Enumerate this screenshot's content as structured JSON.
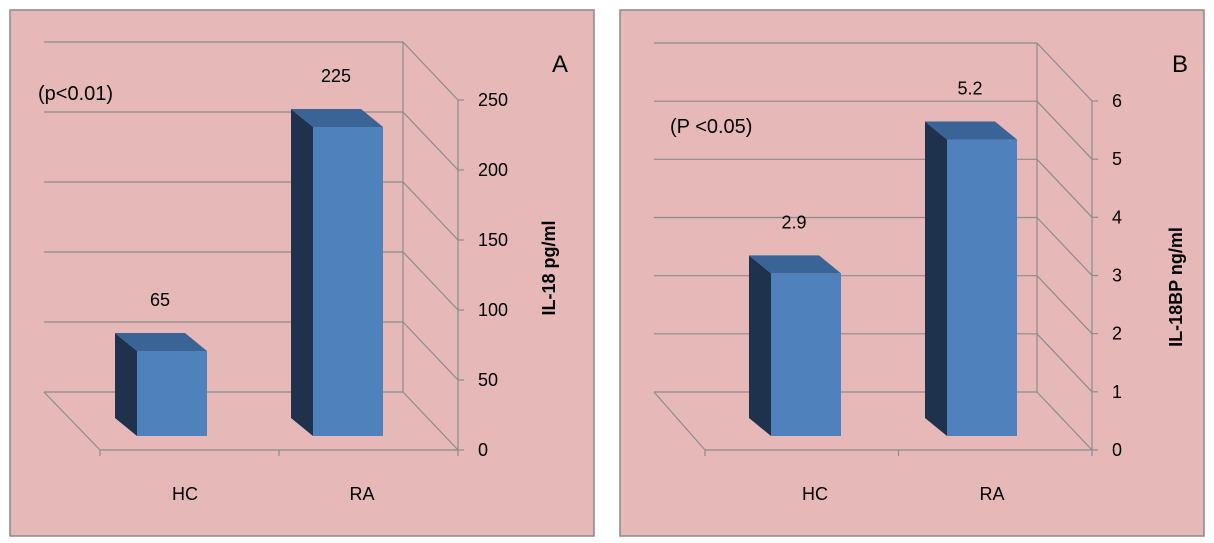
{
  "colors": {
    "background": "#e6b8b8",
    "border": "#8a8a8a",
    "grid": "#8c8c8c",
    "bar_front": "#4f81bd",
    "bar_side": "#1f324d",
    "bar_top": "#3a6496"
  },
  "chart_data": [
    {
      "type": "bar",
      "panel_label": "A",
      "annotation": "(p<0.01)",
      "categories": [
        "HC",
        "RA"
      ],
      "values": [
        65,
        225
      ],
      "data_labels": [
        "65",
        "225"
      ],
      "ylabel": "IL-18 pg/ml",
      "ylim": [
        0,
        250
      ],
      "yticks": [
        "0",
        "50",
        "100",
        "150",
        "200",
        "250"
      ],
      "grid": true,
      "style": "3d-column"
    },
    {
      "type": "bar",
      "panel_label": "B",
      "annotation": "(P <0.05)",
      "categories": [
        "HC",
        "RA"
      ],
      "values": [
        2.9,
        5.2
      ],
      "data_labels": [
        "2.9",
        "5.2"
      ],
      "ylabel": "IL-18BP ng/ml",
      "ylim": [
        0,
        6
      ],
      "yticks": [
        "0",
        "1",
        "2",
        "3",
        "4",
        "5",
        "6"
      ],
      "grid": true,
      "style": "3d-column"
    }
  ]
}
